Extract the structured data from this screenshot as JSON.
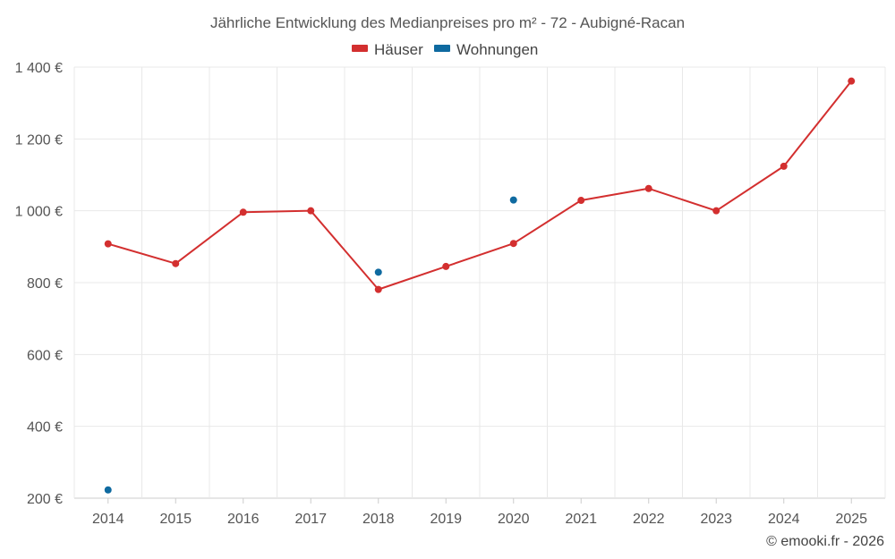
{
  "chart_data": {
    "type": "line",
    "title": "Jährliche Entwicklung des Medianpreises pro m² - 72 - Aubigné-Racan",
    "categories": [
      "2014",
      "2015",
      "2016",
      "2017",
      "2018",
      "2019",
      "2020",
      "2021",
      "2022",
      "2023",
      "2024",
      "2025"
    ],
    "y_ticks": [
      200,
      400,
      600,
      800,
      1000,
      1200,
      1400
    ],
    "y_tick_labels": [
      "200 €",
      "400 €",
      "600 €",
      "800 €",
      "1 000 €",
      "1 200 €",
      "1 400 €"
    ],
    "ylim": [
      200,
      1400
    ],
    "xlabel": "",
    "ylabel": "",
    "grid": true,
    "legend_position": "top-center",
    "series": [
      {
        "name": "Häuser",
        "color": "#d32f2f",
        "line": true,
        "values": [
          908,
          853,
          996,
          1000,
          781,
          845,
          909,
          1029,
          1062,
          1000,
          1124,
          1361
        ]
      },
      {
        "name": "Wohnungen",
        "color": "#0f6aa0",
        "line": false,
        "values": [
          223,
          null,
          null,
          null,
          829,
          null,
          1030,
          null,
          null,
          null,
          null,
          null
        ]
      }
    ]
  },
  "footer": {
    "copyright": "© emooki.fr - 2026"
  }
}
